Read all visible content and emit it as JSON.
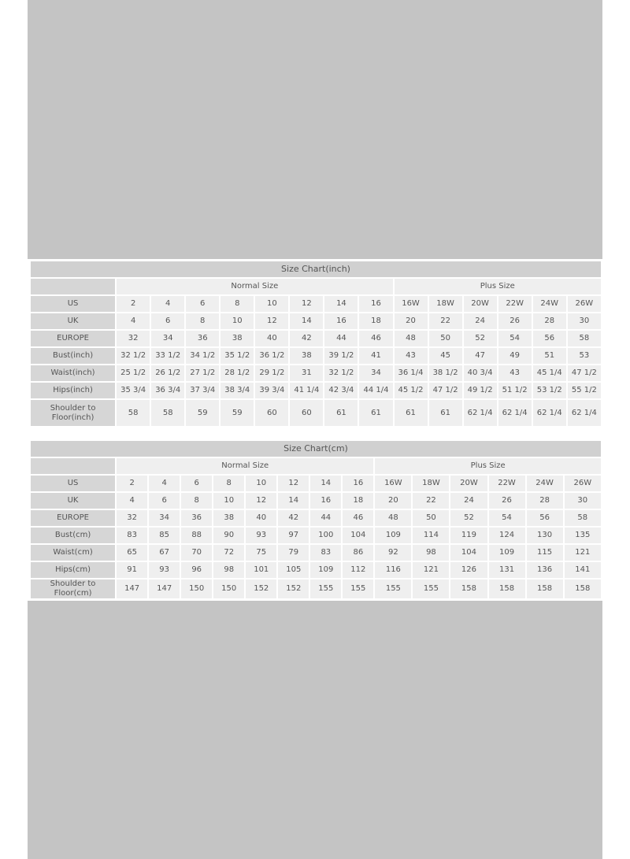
{
  "charts": [
    {
      "title": "Size Chart(inch)",
      "groups": [
        {
          "label": "Normal Size",
          "span": 8
        },
        {
          "label": "Plus Size",
          "span": 6
        }
      ],
      "rows": [
        {
          "label": "US",
          "values": [
            "2",
            "4",
            "6",
            "8",
            "10",
            "12",
            "14",
            "16",
            "16W",
            "18W",
            "20W",
            "22W",
            "24W",
            "26W"
          ]
        },
        {
          "label": "UK",
          "values": [
            "4",
            "6",
            "8",
            "10",
            "12",
            "14",
            "16",
            "18",
            "20",
            "22",
            "24",
            "26",
            "28",
            "30"
          ]
        },
        {
          "label": "EUROPE",
          "values": [
            "32",
            "34",
            "36",
            "38",
            "40",
            "42",
            "44",
            "46",
            "48",
            "50",
            "52",
            "54",
            "56",
            "58"
          ]
        },
        {
          "label": "Bust(inch)",
          "values": [
            "32 1/2",
            "33 1/2",
            "34 1/2",
            "35 1/2",
            "36 1/2",
            "38",
            "39 1/2",
            "41",
            "43",
            "45",
            "47",
            "49",
            "51",
            "53"
          ]
        },
        {
          "label": "Waist(inch)",
          "values": [
            "25 1/2",
            "26 1/2",
            "27 1/2",
            "28 1/2",
            "29 1/2",
            "31",
            "32 1/2",
            "34",
            "36 1/4",
            "38 1/2",
            "40 3/4",
            "43",
            "45 1/4",
            "47 1/2"
          ]
        },
        {
          "label": "Hips(inch)",
          "values": [
            "35 3/4",
            "36 3/4",
            "37 3/4",
            "38 3/4",
            "39 3/4",
            "41 1/4",
            "42 3/4",
            "44 1/4",
            "45 1/2",
            "47 1/2",
            "49 1/2",
            "51 1/2",
            "53 1/2",
            "55 1/2"
          ]
        },
        {
          "label": "Shoulder to Floor(inch)",
          "values": [
            "58",
            "58",
            "59",
            "59",
            "60",
            "60",
            "61",
            "61",
            "61",
            "61",
            "62 1/4",
            "62 1/4",
            "62 1/4",
            "62 1/4"
          ]
        }
      ]
    },
    {
      "title": "Size Chart(cm)",
      "groups": [
        {
          "label": "Normal Size",
          "span": 8
        },
        {
          "label": "Plus Size",
          "span": 6
        }
      ],
      "rows": [
        {
          "label": "US",
          "values": [
            "2",
            "4",
            "6",
            "8",
            "10",
            "12",
            "14",
            "16",
            "16W",
            "18W",
            "20W",
            "22W",
            "24W",
            "26W"
          ]
        },
        {
          "label": "UK",
          "values": [
            "4",
            "6",
            "8",
            "10",
            "12",
            "14",
            "16",
            "18",
            "20",
            "22",
            "24",
            "26",
            "28",
            "30"
          ]
        },
        {
          "label": "EUROPE",
          "values": [
            "32",
            "34",
            "36",
            "38",
            "40",
            "42",
            "44",
            "46",
            "48",
            "50",
            "52",
            "54",
            "56",
            "58"
          ]
        },
        {
          "label": "Bust(cm)",
          "values": [
            "83",
            "85",
            "88",
            "90",
            "93",
            "97",
            "100",
            "104",
            "109",
            "114",
            "119",
            "124",
            "130",
            "135"
          ]
        },
        {
          "label": "Waist(cm)",
          "values": [
            "65",
            "67",
            "70",
            "72",
            "75",
            "79",
            "83",
            "86",
            "92",
            "98",
            "104",
            "109",
            "115",
            "121"
          ]
        },
        {
          "label": "Hips(cm)",
          "values": [
            "91",
            "93",
            "96",
            "98",
            "101",
            "105",
            "109",
            "112",
            "116",
            "121",
            "126",
            "131",
            "136",
            "141"
          ]
        },
        {
          "label": "Shoulder to Floor(cm)",
          "values": [
            "147",
            "147",
            "150",
            "150",
            "152",
            "152",
            "155",
            "155",
            "155",
            "155",
            "158",
            "158",
            "158",
            "158"
          ]
        }
      ]
    }
  ]
}
